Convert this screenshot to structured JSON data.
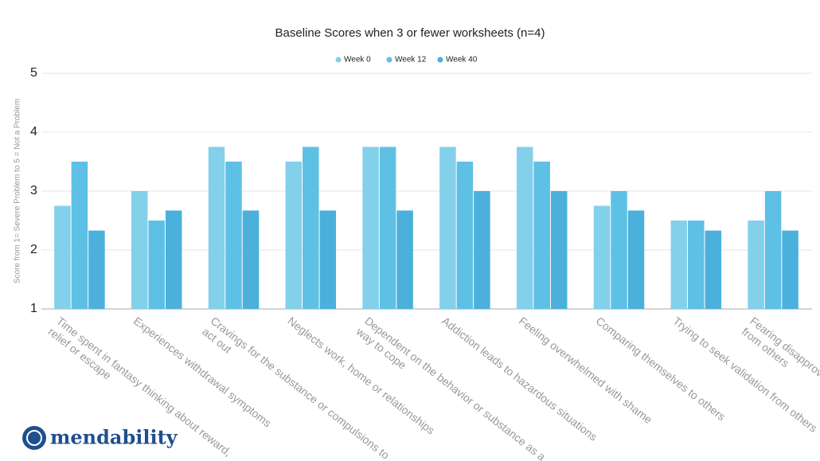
{
  "chart_data": {
    "type": "bar",
    "title": "Baseline Scores when 3 or fewer worksheets (n=4)",
    "y_label": "Score from 1= Severe Problem to 5 = Not a Problem",
    "categories": [
      [
        "Time spent in fantasy thinking about reward,",
        "relief or escape"
      ],
      [
        "Experiences withdrawal symptoms"
      ],
      [
        "Cravings for the substance or compulsions to",
        "act out"
      ],
      [
        "Neglects work, home or relationships"
      ],
      [
        "Dependent on the behavior or substance as a",
        "way to cope"
      ],
      [
        "Addiction leads to hazardous situations"
      ],
      [
        "Feeling overwhelmed with shame"
      ],
      [
        "Comparing themselves to others"
      ],
      [
        "Trying to seek validation from others"
      ],
      [
        "Fearing disapproval",
        "from others"
      ]
    ],
    "series": [
      {
        "name": "Week 0",
        "color": "#82d0ea",
        "values": [
          2.75,
          3.0,
          3.75,
          3.5,
          3.75,
          3.75,
          3.75,
          2.75,
          2.5,
          2.5
        ]
      },
      {
        "name": "Week 12",
        "color": "#5fc0e6",
        "values": [
          3.5,
          2.5,
          3.5,
          3.75,
          3.75,
          3.5,
          3.5,
          3.0,
          2.5,
          3.0
        ]
      },
      {
        "name": "Week 40",
        "color": "#4cb0dc",
        "values": [
          2.33,
          2.67,
          2.67,
          2.67,
          2.67,
          3.0,
          3.0,
          2.67,
          2.33,
          2.33
        ]
      }
    ],
    "ylim": [
      1,
      5
    ],
    "yticks": [
      1,
      2,
      3,
      4,
      5
    ],
    "grid": true,
    "legend": "top"
  },
  "logo": "mendability"
}
